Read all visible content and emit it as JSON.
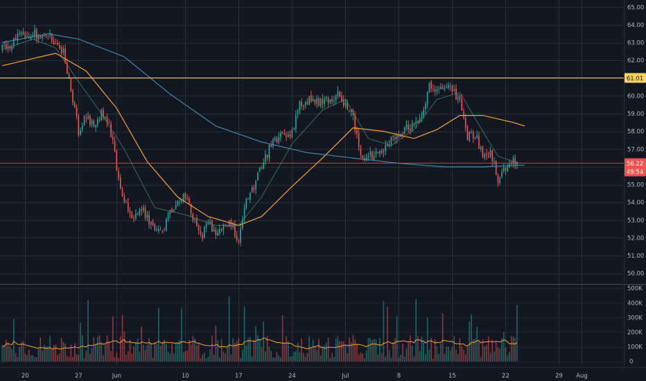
{
  "chart_data": {
    "type": "candlestick",
    "title": "",
    "grid": true,
    "colors": {
      "background": "#131722",
      "grid": "#2a2e39",
      "up": "#26a69a",
      "down": "#ef5350",
      "ma_short": "#4a8f6a",
      "ma_mid": "#f7a532",
      "ma_long": "#3f89a8",
      "volume_ma": "#f7a532",
      "resistance": "#f7d55a",
      "last_price": "#ef5350",
      "axis_text": "#b2b5be"
    },
    "price_axis": {
      "ylim": [
        49.4,
        65.4
      ],
      "ticks": [
        "65.00",
        "64.00",
        "63.00",
        "62.00",
        "61.00",
        "60.00",
        "59.00",
        "58.00",
        "57.00",
        "56.00",
        "55.00",
        "54.00",
        "53.00",
        "52.00",
        "51.00",
        "50.00"
      ]
    },
    "volume_axis": {
      "ylim": [
        -30000,
        520000
      ],
      "ticks": [
        "500K",
        "400K",
        "300K",
        "200K",
        "100K",
        "0"
      ]
    },
    "time_axis": {
      "labels": [
        {
          "text": "20",
          "day": 0
        },
        {
          "text": "27",
          "day": 7
        },
        {
          "text": "Jun",
          "day": 12
        },
        {
          "text": "10",
          "day": 21
        },
        {
          "text": "17",
          "day": 28
        },
        {
          "text": "24",
          "day": 35
        },
        {
          "text": "Jul",
          "day": 42
        },
        {
          "text": "8",
          "day": 49
        },
        {
          "text": "15",
          "day": 56
        },
        {
          "text": "22",
          "day": 63
        },
        {
          "text": "29",
          "day": 70
        },
        {
          "text": "Aug",
          "day": 73
        }
      ],
      "xlim": [
        -3.3,
        78.5
      ]
    },
    "resistance_level": {
      "value": 61.01,
      "label": "61.01"
    },
    "last_price": {
      "value": 56.22,
      "label": "56.22",
      "timer": "49:54"
    },
    "price_path": [
      [
        -3.0,
        62.6
      ],
      [
        -2.0,
        62.9
      ],
      [
        -1.0,
        63.3
      ],
      [
        0.0,
        63.5
      ],
      [
        1.0,
        63.6
      ],
      [
        2.0,
        63.2
      ],
      [
        3.0,
        63.6
      ],
      [
        4.0,
        63.0
      ],
      [
        5.0,
        62.5
      ],
      [
        6.0,
        60.5
      ],
      [
        7.0,
        58.0
      ],
      [
        8.0,
        58.8
      ],
      [
        9.0,
        58.4
      ],
      [
        10.0,
        59.1
      ],
      [
        11.0,
        58.5
      ],
      [
        12.0,
        56.0
      ],
      [
        13.0,
        54.0
      ],
      [
        14.0,
        53.1
      ],
      [
        15.0,
        53.8
      ],
      [
        16.0,
        53.2
      ],
      [
        17.0,
        52.3
      ],
      [
        18.0,
        52.2
      ],
      [
        19.0,
        53.5
      ],
      [
        20.0,
        54.2
      ],
      [
        21.0,
        54.2
      ],
      [
        22.0,
        53.2
      ],
      [
        23.0,
        52.0
      ],
      [
        24.0,
        52.8
      ],
      [
        25.0,
        52.3
      ],
      [
        26.0,
        52.6
      ],
      [
        27.0,
        52.8
      ],
      [
        28.0,
        51.9
      ],
      [
        29.0,
        54.0
      ],
      [
        30.0,
        54.9
      ],
      [
        31.0,
        56.0
      ],
      [
        32.0,
        57.0
      ],
      [
        33.0,
        57.6
      ],
      [
        34.0,
        57.7
      ],
      [
        35.0,
        58.0
      ],
      [
        36.0,
        59.5
      ],
      [
        37.0,
        59.8
      ],
      [
        38.0,
        59.6
      ],
      [
        39.0,
        59.7
      ],
      [
        40.0,
        59.8
      ],
      [
        41.0,
        60.0
      ],
      [
        42.0,
        59.6
      ],
      [
        43.0,
        58.9
      ],
      [
        44.0,
        56.5
      ],
      [
        45.0,
        56.6
      ],
      [
        46.0,
        56.6
      ],
      [
        47.0,
        57.0
      ],
      [
        48.0,
        57.6
      ],
      [
        49.0,
        57.9
      ],
      [
        50.0,
        58.2
      ],
      [
        51.0,
        58.4
      ],
      [
        52.0,
        59.0
      ],
      [
        53.0,
        60.6
      ],
      [
        54.0,
        60.3
      ],
      [
        55.0,
        60.6
      ],
      [
        56.0,
        60.2
      ],
      [
        57.0,
        59.8
      ],
      [
        58.0,
        57.7
      ],
      [
        59.0,
        57.9
      ],
      [
        60.0,
        56.5
      ],
      [
        61.0,
        56.9
      ],
      [
        62.0,
        55.3
      ],
      [
        63.0,
        56.0
      ],
      [
        64.0,
        56.3
      ],
      [
        64.7,
        56.22
      ]
    ],
    "series": [
      {
        "name": "",
        "color": "#4a8f6a",
        "points": [
          [
            -3.0,
            62.6
          ],
          [
            1.0,
            63.2
          ],
          [
            4.0,
            62.7
          ],
          [
            7.0,
            60.8
          ],
          [
            10.0,
            59.0
          ],
          [
            13.0,
            57.0
          ],
          [
            17.0,
            53.7
          ],
          [
            21.0,
            53.3
          ],
          [
            25.0,
            52.7
          ],
          [
            28.0,
            52.7
          ],
          [
            31.0,
            54.3
          ],
          [
            35.0,
            57.3
          ],
          [
            39.0,
            59.2
          ],
          [
            42.0,
            59.8
          ],
          [
            45.0,
            57.6
          ],
          [
            48.0,
            57.2
          ],
          [
            51.0,
            58.1
          ],
          [
            54.0,
            59.8
          ],
          [
            57.0,
            60.2
          ],
          [
            60.0,
            58.0
          ],
          [
            62.0,
            56.6
          ],
          [
            64.7,
            56.2
          ]
        ]
      },
      {
        "name": "",
        "color": "#f7a532",
        "points": [
          [
            -3.0,
            61.7
          ],
          [
            1.0,
            62.1
          ],
          [
            4.0,
            62.4
          ],
          [
            8.0,
            61.4
          ],
          [
            12.0,
            59.3
          ],
          [
            16.0,
            56.3
          ],
          [
            20.0,
            54.3
          ],
          [
            24.0,
            53.2
          ],
          [
            28.0,
            52.7
          ],
          [
            31.0,
            53.2
          ],
          [
            35.0,
            54.9
          ],
          [
            39.0,
            56.5
          ],
          [
            43.0,
            58.2
          ],
          [
            47.0,
            58.0
          ],
          [
            51.0,
            57.6
          ],
          [
            54.0,
            58.1
          ],
          [
            57.0,
            58.9
          ],
          [
            60.0,
            58.9
          ],
          [
            64.0,
            58.5
          ],
          [
            65.5,
            58.3
          ]
        ]
      },
      {
        "name": "",
        "color": "#3f89a8",
        "points": [
          [
            -3.0,
            63.0
          ],
          [
            3.0,
            63.5
          ],
          [
            7.0,
            63.2
          ],
          [
            13.0,
            62.2
          ],
          [
            19.0,
            60.1
          ],
          [
            25.0,
            58.3
          ],
          [
            31.0,
            57.4
          ],
          [
            37.0,
            56.8
          ],
          [
            43.0,
            56.5
          ],
          [
            49.0,
            56.2
          ],
          [
            55.0,
            56.0
          ],
          [
            60.0,
            56.0
          ],
          [
            65.5,
            56.1
          ]
        ]
      }
    ]
  }
}
